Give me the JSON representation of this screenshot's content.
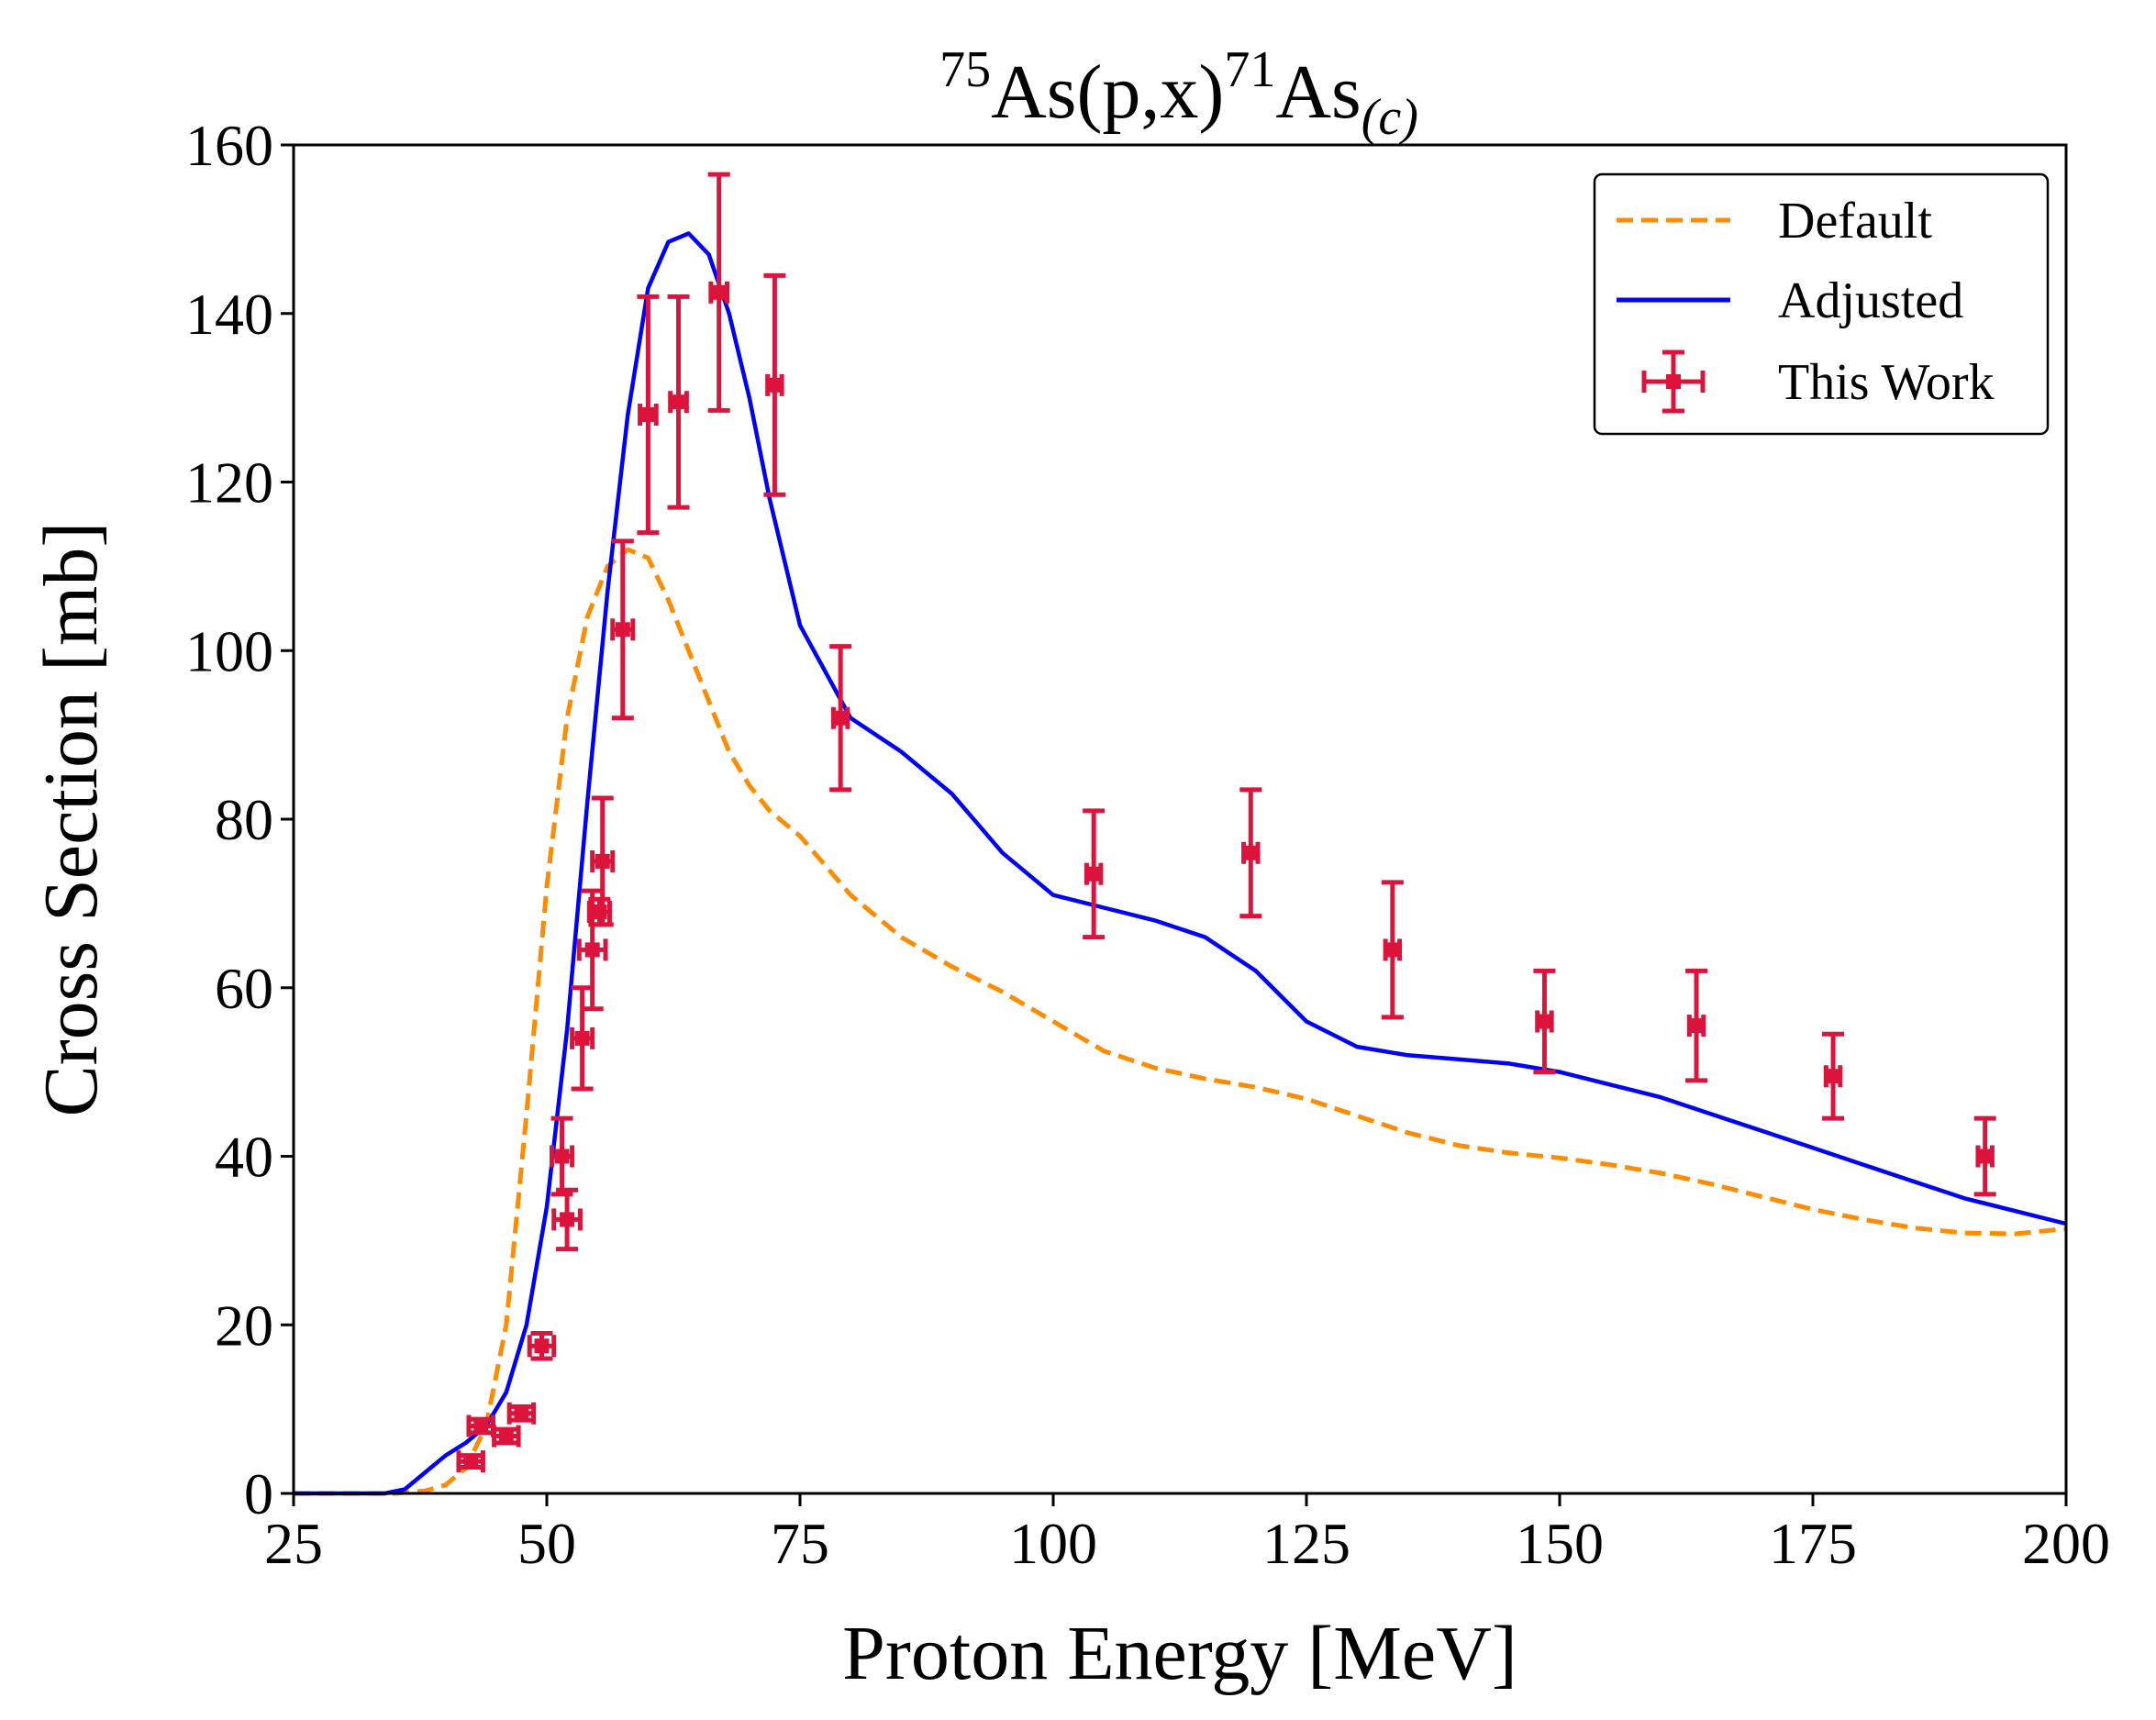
{
  "chart_data": {
    "type": "line",
    "title": {
      "mass_target": "75",
      "target": "As(p,x)",
      "mass_product": "71",
      "product": "As",
      "subscript": "(c)"
    },
    "xlabel": "Proton Energy [MeV]",
    "ylabel": "Cross Section [mb]",
    "xlim": [
      25,
      200
    ],
    "ylim": [
      0,
      160
    ],
    "xticks": [
      25,
      50,
      75,
      100,
      125,
      150,
      175,
      200
    ],
    "yticks": [
      0,
      20,
      40,
      60,
      80,
      100,
      120,
      140,
      160
    ],
    "grid": false,
    "legend_position": "top-right",
    "series": [
      {
        "name": "Default",
        "style": "dashed",
        "color": "#ff8c00",
        "x": [
          25,
          35,
          38,
          40,
          42,
          44,
          46,
          48,
          50,
          52,
          54,
          56,
          58,
          60,
          62,
          64,
          66,
          68,
          70,
          72,
          75,
          80,
          85,
          90,
          95,
          100,
          105,
          110,
          115,
          120,
          125,
          130,
          135,
          140,
          145,
          150,
          155,
          160,
          165,
          170,
          175,
          180,
          185,
          190,
          195,
          200
        ],
        "y": [
          0,
          0,
          0.3,
          1,
          3,
          8,
          20,
          45,
          72,
          92,
          104,
          110,
          112,
          111,
          106,
          100,
          94,
          88,
          84,
          81,
          78,
          71,
          66,
          62.5,
          59.5,
          56,
          52.5,
          50.5,
          49.2,
          48.2,
          46.8,
          44.8,
          42.8,
          41.3,
          40.4,
          39.8,
          39,
          38,
          36.7,
          35.2,
          33.7,
          32.5,
          31.5,
          30.9,
          30.8,
          31.4
        ]
      },
      {
        "name": "Adjusted",
        "style": "solid",
        "color": "#0000ff",
        "x": [
          25,
          34,
          36,
          38,
          40,
          42,
          44,
          46,
          48,
          50,
          52,
          54,
          56,
          58,
          60,
          62,
          64,
          66,
          68,
          70,
          72,
          75,
          80,
          85,
          90,
          95,
          100,
          105,
          110,
          115,
          120,
          125,
          130,
          135,
          140,
          145,
          150,
          155,
          160,
          165,
          170,
          175,
          180,
          185,
          190,
          195,
          200
        ],
        "y": [
          0,
          0,
          0.5,
          2.5,
          4.5,
          6,
          8,
          12,
          20,
          34,
          55,
          82,
          107,
          128,
          143,
          148.5,
          149.5,
          147,
          140,
          130,
          118,
          103,
          92,
          88,
          83,
          76,
          71,
          69.5,
          68,
          66,
          62,
          56,
          53,
          52,
          51.5,
          51,
          50,
          48.5,
          47,
          45,
          43,
          41,
          39,
          37,
          35,
          33.5,
          32
        ]
      },
      {
        "name": "This Work",
        "style": "errorbar",
        "color": "#dc143c",
        "points": [
          {
            "x": 42.5,
            "y": 3.8,
            "xerr": 1.2,
            "yerr": 0.7
          },
          {
            "x": 43.5,
            "y": 8,
            "xerr": 1.2,
            "yerr": 0.8
          },
          {
            "x": 46,
            "y": 6.8,
            "xerr": 1.2,
            "yerr": 0.8
          },
          {
            "x": 47.5,
            "y": 9.5,
            "xerr": 1.2,
            "yerr": 0.8
          },
          {
            "x": 49.5,
            "y": 17.5,
            "xerr": 1.2,
            "yerr": 1.5
          },
          {
            "x": 51.5,
            "y": 40,
            "xerr": 1.0,
            "yerr": 4.5
          },
          {
            "x": 52,
            "y": 32.5,
            "xerr": 1.3,
            "yerr": 3.5
          },
          {
            "x": 53.5,
            "y": 54,
            "xerr": 1.0,
            "yerr": 6.0
          },
          {
            "x": 54.5,
            "y": 64.5,
            "xerr": 1.3,
            "yerr": 7.0
          },
          {
            "x": 55.2,
            "y": 69,
            "xerr": 1.0,
            "yerr": 1.5
          },
          {
            "x": 55.5,
            "y": 75,
            "xerr": 1.0,
            "yerr": 7.5
          },
          {
            "x": 57.5,
            "y": 102.5,
            "xerr": 1.0,
            "yerr": 10.5
          },
          {
            "x": 60,
            "y": 128,
            "xerr": 0.8,
            "yerr": 14.0
          },
          {
            "x": 63,
            "y": 129.5,
            "xerr": 0.8,
            "yerr": 12.5
          },
          {
            "x": 67,
            "y": 142.5,
            "xerr": 0.8,
            "yerr": 14.0
          },
          {
            "x": 72.5,
            "y": 131.5,
            "xerr": 0.7,
            "yerr": 13.0
          },
          {
            "x": 79,
            "y": 92,
            "xerr": 0.7,
            "yerr": 8.5
          },
          {
            "x": 104,
            "y": 73.5,
            "xerr": 0.7,
            "yerr": 7.5
          },
          {
            "x": 119.5,
            "y": 76,
            "xerr": 0.7,
            "yerr": 7.5
          },
          {
            "x": 133.5,
            "y": 64.5,
            "xerr": 0.7,
            "yerr": 8.0
          },
          {
            "x": 148.5,
            "y": 56,
            "xerr": 0.7,
            "yerr": 6.0
          },
          {
            "x": 163.5,
            "y": 55.5,
            "xerr": 0.7,
            "yerr": 6.5
          },
          {
            "x": 177,
            "y": 49.5,
            "xerr": 0.7,
            "yerr": 5.0
          },
          {
            "x": 192,
            "y": 40,
            "xerr": 0.7,
            "yerr": 4.5
          }
        ]
      }
    ]
  }
}
